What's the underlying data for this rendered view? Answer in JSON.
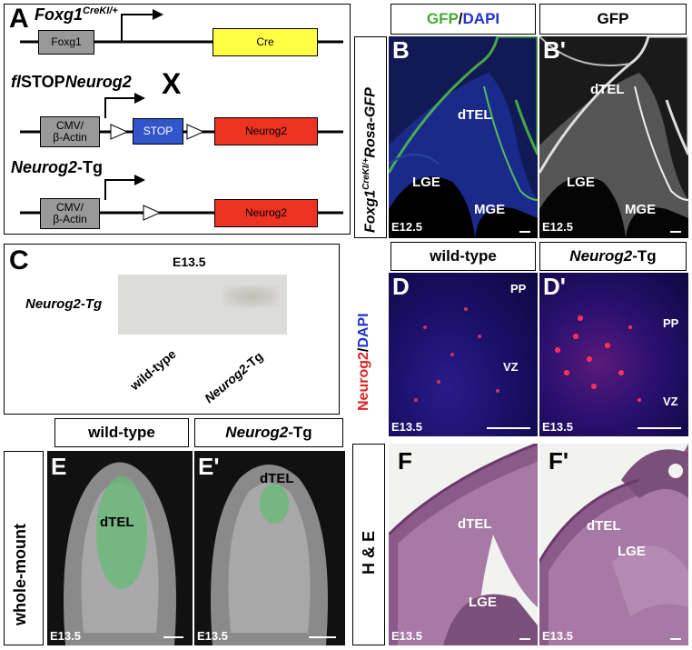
{
  "panel_a": {
    "letter": "A",
    "line1_title": "Foxg1",
    "line1_title_sup": "CreKI/+",
    "line1_box1": "Foxg1",
    "line1_box2": "Cre",
    "line2_title_prefix": "fl",
    "line2_title_mid": "STOP",
    "line2_title_gene": "Neurog2",
    "cross": "X",
    "line2_box1a": "CMV/",
    "line2_box1b": "β-Actin",
    "line2_box2": "STOP",
    "line2_box3": "Neurog2",
    "line3_title_gene": "Neurog2",
    "line3_title_suffix": "-Tg",
    "line3_box1a": "CMV/",
    "line3_box1b": "β-Actin",
    "line3_box2": "Neurog2",
    "colors": {
      "foxg1": "#999999",
      "cre": "#ffff44",
      "stop": "#3355cc",
      "neurog2": "#ee3322"
    }
  },
  "panel_b": {
    "caption_gfp": "GFP",
    "caption_sep": "/",
    "caption_dapi": "DAPI",
    "caption_right": "GFP",
    "side_label_gene1": "Foxg1",
    "side_label_sup": "CreKI/+",
    "side_label_gene2": "Rosa-GFP",
    "left_letter": "B",
    "right_letter": "B'",
    "dtel": "dTEL",
    "lge": "LGE",
    "mge": "MGE",
    "stage": "E12.5"
  },
  "panel_c": {
    "letter": "C",
    "stage": "E13.5",
    "row_label": "Neurog2-Tg",
    "col1": "wild-type",
    "col2_gene": "Neurog2",
    "col2_suffix": "-Tg"
  },
  "panel_d": {
    "caption_left": "wild-type",
    "caption_right_gene": "Neurog2",
    "caption_right_suffix": "-Tg",
    "side_red": "Neurog2",
    "side_sep": "/",
    "side_blue": "DAPI",
    "left_letter": "D",
    "right_letter": "D'",
    "pp": "PP",
    "vz": "VZ",
    "stage": "E13.5"
  },
  "panel_e": {
    "caption_left": "wild-type",
    "caption_right_gene": "Neurog2",
    "caption_right_suffix": "-Tg",
    "side_label": "whole-mount",
    "left_letter": "E",
    "right_letter": "E'",
    "dtel": "dTEL",
    "stage": "E13.5"
  },
  "panel_f": {
    "side_label": "H & E",
    "left_letter": "F",
    "right_letter": "F'",
    "dtel": "dTEL",
    "lge": "LGE",
    "stage": "E13.5"
  }
}
